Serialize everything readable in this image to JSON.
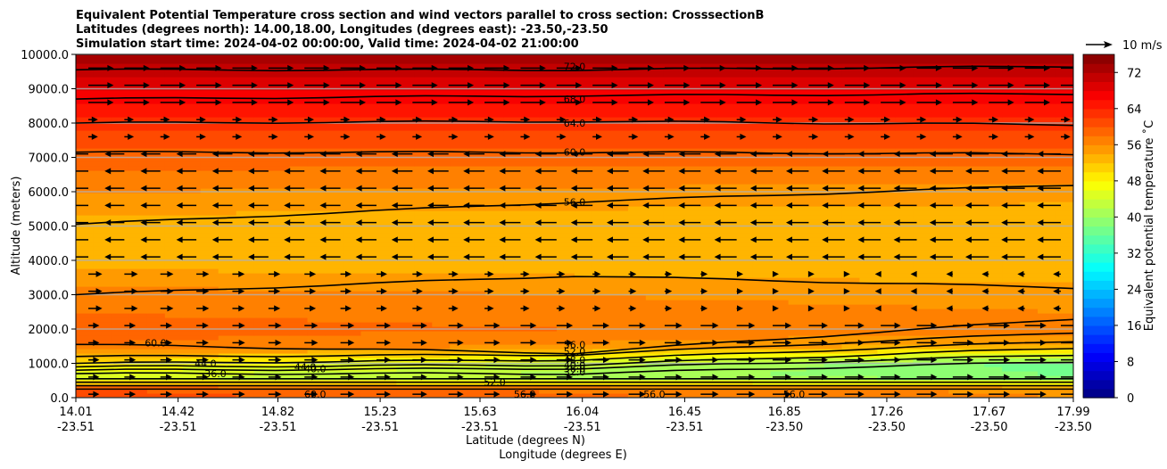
{
  "chart_data": {
    "type": "heatmap",
    "title_lines": [
      "Equivalent Potential Temperature cross section and wind vectors parallel to cross section: CrosssectionB",
      "Latitudes (degrees north): 14.00,18.00, Longitudes (degrees east): -23.50,-23.50",
      "Simulation start time: 2024-04-02 00:00:00, Valid time: 2024-04-02 21:00:00"
    ],
    "xlabel": "Latitude (degrees N)",
    "xlabel2": "Longitude (degrees E)",
    "ylabel": "Altitude (meters)",
    "ylim": [
      0,
      10000
    ],
    "y_ticks": [
      "0.0",
      "1000.0",
      "2000.0",
      "3000.0",
      "4000.0",
      "5000.0",
      "6000.0",
      "7000.0",
      "8000.0",
      "9000.0",
      "10000.0"
    ],
    "x_ticks": [
      {
        "lat": "14.01",
        "lon": "-23.51"
      },
      {
        "lat": "14.42",
        "lon": "-23.51"
      },
      {
        "lat": "14.82",
        "lon": "-23.51"
      },
      {
        "lat": "15.23",
        "lon": "-23.51"
      },
      {
        "lat": "15.63",
        "lon": "-23.51"
      },
      {
        "lat": "16.04",
        "lon": "-23.51"
      },
      {
        "lat": "16.45",
        "lon": "-23.51"
      },
      {
        "lat": "16.85",
        "lon": "-23.50"
      },
      {
        "lat": "17.26",
        "lon": "-23.50"
      },
      {
        "lat": "17.67",
        "lon": "-23.50"
      },
      {
        "lat": "17.99",
        "lon": "-23.50"
      }
    ],
    "colorbar": {
      "label": "Equivalent potential temperature ˚C",
      "min": 0,
      "max": 76,
      "step": 2,
      "ticks": [
        "0",
        "8",
        "16",
        "24",
        "32",
        "40",
        "48",
        "56",
        "64",
        "72"
      ],
      "colormap": "jet"
    },
    "quiver_key": "10 m/s",
    "grid": "horizontal",
    "profile_levels_m": [
      0,
      300,
      600,
      1000,
      1500,
      2000,
      3000,
      4000,
      5000,
      6000,
      7000,
      8000,
      9000,
      10000
    ],
    "profile_theta_e": [
      [
        61,
        60,
        44,
        49,
        58,
        59,
        57,
        53,
        53,
        56,
        59,
        63,
        68,
        73
      ],
      [
        56,
        55,
        38,
        37,
        53,
        57,
        55,
        52,
        52,
        55,
        59,
        63,
        68,
        73
      ]
    ],
    "contour_labels": [
      "72.0",
      "68.0",
      "64.0",
      "60.0",
      "56.0",
      "60.0",
      "56.0",
      "52.0",
      "48.0",
      "44.0",
      "40.0",
      "36.0",
      "32.0",
      "36.0",
      "40.0",
      "44.0",
      "60.0",
      "56.0",
      "56.0",
      "56.0",
      "52.0"
    ],
    "wind_vectors": "eastward aloft (>8500 m) and near the surface, westward between 4000 and 7500 m"
  }
}
